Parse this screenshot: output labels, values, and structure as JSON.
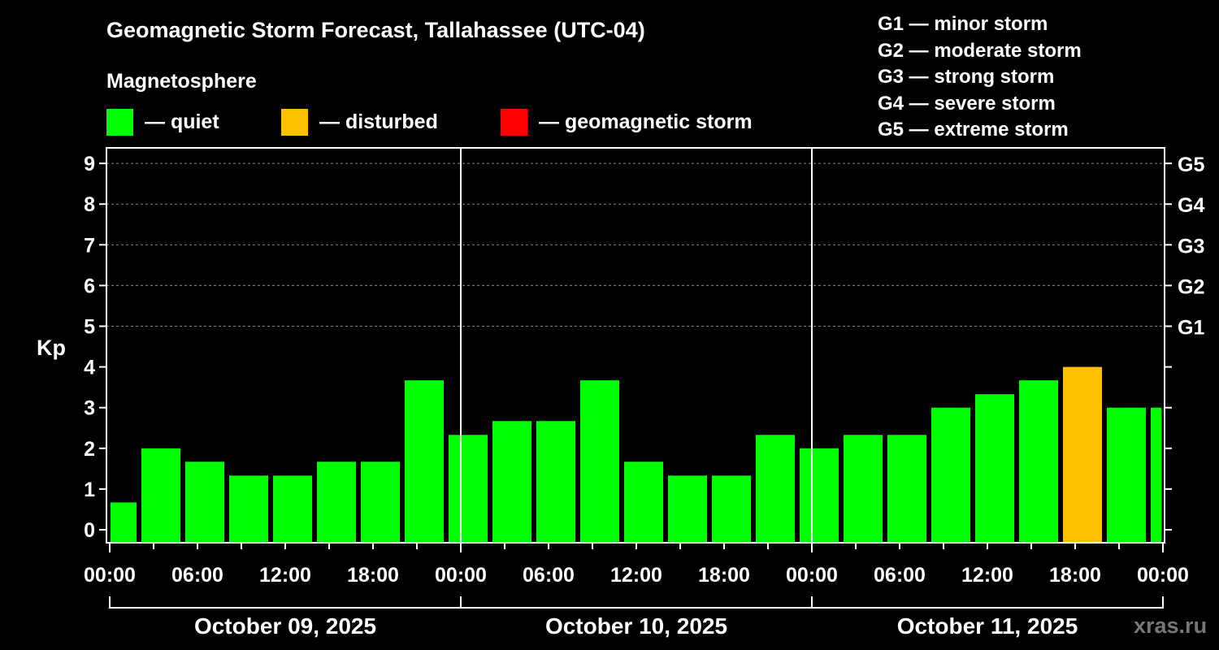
{
  "chart_data": {
    "type": "bar",
    "title": "Geomagnetic Storm Forecast, Tallahassee (UTC-04)",
    "ylabel": "Kp",
    "ylim": [
      0,
      9
    ],
    "yticks": [
      "0",
      "1",
      "2",
      "3",
      "4",
      "5",
      "6",
      "7",
      "8",
      "9"
    ],
    "right_ticks": [
      {
        "kp": 5,
        "label": "G1"
      },
      {
        "kp": 6,
        "label": "G2"
      },
      {
        "kp": 7,
        "label": "G3"
      },
      {
        "kp": 8,
        "label": "G4"
      },
      {
        "kp": 9,
        "label": "G5"
      }
    ],
    "xtick_labels": [
      "00:00",
      "06:00",
      "12:00",
      "18:00",
      "00:00",
      "06:00",
      "12:00",
      "18:00",
      "00:00",
      "06:00",
      "12:00",
      "18:00",
      "00:00"
    ],
    "days": [
      "October 09, 2025",
      "October 10, 2025",
      "October 11, 2025"
    ],
    "bar_interval_hours": 3,
    "first_bar_start_hour": -1,
    "values": [
      0.67,
      2.0,
      1.67,
      1.33,
      1.33,
      1.67,
      1.67,
      3.67,
      2.33,
      2.67,
      2.67,
      3.67,
      1.67,
      1.33,
      1.33,
      2.33,
      2.0,
      2.33,
      2.33,
      3.0,
      3.33,
      3.67,
      4.0,
      3.0,
      3.0
    ],
    "status": [
      "quiet",
      "quiet",
      "quiet",
      "quiet",
      "quiet",
      "quiet",
      "quiet",
      "quiet",
      "quiet",
      "quiet",
      "quiet",
      "quiet",
      "quiet",
      "quiet",
      "quiet",
      "quiet",
      "quiet",
      "quiet",
      "quiet",
      "quiet",
      "quiet",
      "quiet",
      "disturbed",
      "quiet",
      "quiet"
    ],
    "grid": true
  },
  "colors": {
    "quiet": "#00ff00",
    "disturbed": "#ffc000",
    "storm": "#ff0000"
  },
  "legend": {
    "heading": "Magnetosphere",
    "quiet": "— quiet",
    "disturbed": "— disturbed",
    "storm": "— geomagnetic storm"
  },
  "g_scale": [
    "G1 — minor storm",
    "G2 — moderate storm",
    "G3 — strong storm",
    "G4 — severe storm",
    "G5 — extreme storm"
  ],
  "watermark": "xras.ru"
}
